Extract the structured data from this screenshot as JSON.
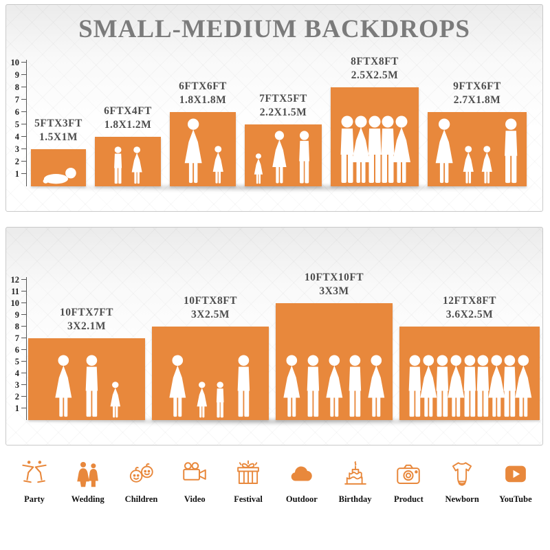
{
  "title": "SMALL-MEDIUM BACKDROPS",
  "accent_color": "#E8883C",
  "panel1": {
    "ruler_max": 10,
    "backdrops": [
      {
        "ft": "5FTX3FT",
        "m": "1.5X1M",
        "w_ft": 5,
        "h_ft": 3,
        "figures": [
          "baby"
        ]
      },
      {
        "ft": "6FTX4FT",
        "m": "1.8X1.2M",
        "w_ft": 6,
        "h_ft": 4,
        "figures": [
          "boy",
          "girl"
        ]
      },
      {
        "ft": "6FTX6FT",
        "m": "1.8X1.8M",
        "w_ft": 6,
        "h_ft": 6,
        "figures": [
          "woman",
          "girl"
        ]
      },
      {
        "ft": "7FTX5FT",
        "m": "2.2X1.5M",
        "w_ft": 7,
        "h_ft": 5,
        "figures": [
          "girl",
          "woman",
          "man"
        ]
      },
      {
        "ft": "8FTX8FT",
        "m": "2.5X2.5M",
        "w_ft": 8,
        "h_ft": 8,
        "figures": [
          "man",
          "woman",
          "man",
          "man",
          "woman"
        ]
      },
      {
        "ft": "9FTX6FT",
        "m": "2.7X1.8M",
        "w_ft": 9,
        "h_ft": 6,
        "figures": [
          "woman",
          "girl",
          "girl",
          "man"
        ]
      }
    ]
  },
  "panel2": {
    "ruler_max": 12,
    "backdrops": [
      {
        "ft": "10FTX7FT",
        "m": "3X2.1M",
        "w_ft": 10,
        "h_ft": 7,
        "figures": [
          "woman",
          "man",
          "girl"
        ]
      },
      {
        "ft": "10FTX8FT",
        "m": "3X2.5M",
        "w_ft": 10,
        "h_ft": 8,
        "figures": [
          "woman",
          "girl",
          "boy",
          "man"
        ]
      },
      {
        "ft": "10FTX10FT",
        "m": "3X3M",
        "w_ft": 10,
        "h_ft": 10,
        "figures": [
          "woman",
          "man",
          "woman",
          "man",
          "woman"
        ]
      },
      {
        "ft": "12FTX8FT",
        "m": "3.6X2.5M",
        "w_ft": 12,
        "h_ft": 8,
        "figures": [
          "man",
          "woman",
          "man",
          "woman",
          "man",
          "man",
          "woman",
          "man",
          "woman"
        ]
      }
    ]
  },
  "categories": [
    {
      "label": "Party",
      "icon": "party-icon"
    },
    {
      "label": "Wedding",
      "icon": "wedding-icon"
    },
    {
      "label": "Children",
      "icon": "children-icon"
    },
    {
      "label": "Video",
      "icon": "video-icon"
    },
    {
      "label": "Festival",
      "icon": "festival-icon"
    },
    {
      "label": "Outdoor",
      "icon": "outdoor-icon"
    },
    {
      "label": "Birthday",
      "icon": "birthday-icon"
    },
    {
      "label": "Product",
      "icon": "product-icon"
    },
    {
      "label": "Newborn",
      "icon": "newborn-icon"
    },
    {
      "label": "YouTube",
      "icon": "youtube-icon"
    }
  ]
}
